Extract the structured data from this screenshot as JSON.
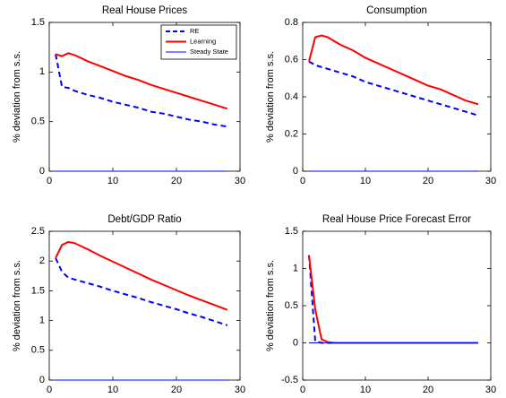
{
  "chart_data": [
    {
      "type": "line",
      "title": "Real House Prices",
      "ylabel": "% deviation from s.s.",
      "x": [
        1,
        2,
        3,
        4,
        5,
        6,
        8,
        10,
        12,
        14,
        16,
        18,
        20,
        22,
        24,
        26,
        28
      ],
      "xlim": [
        0,
        30
      ],
      "xticks": [
        0,
        10,
        20,
        30
      ],
      "ylim": [
        0,
        1.5
      ],
      "yticks": [
        0,
        0.5,
        1,
        1.5
      ],
      "legend": "upper right",
      "series": [
        {
          "name": "RE",
          "color": "#0000ff",
          "style": "dashed",
          "linewidth": 2,
          "values": [
            1.18,
            0.85,
            0.84,
            0.81,
            0.79,
            0.77,
            0.74,
            0.7,
            0.67,
            0.64,
            0.6,
            0.58,
            0.55,
            0.52,
            0.5,
            0.47,
            0.45
          ]
        },
        {
          "name": "Learning",
          "color": "#ff0000",
          "style": "solid",
          "linewidth": 2,
          "values": [
            1.18,
            1.16,
            1.19,
            1.17,
            1.14,
            1.11,
            1.06,
            1.01,
            0.96,
            0.92,
            0.87,
            0.83,
            0.79,
            0.75,
            0.71,
            0.67,
            0.63
          ]
        },
        {
          "name": "Steady State",
          "color": "#0000ff",
          "style": "solid",
          "linewidth": 1,
          "values": [
            0,
            0,
            0,
            0,
            0,
            0,
            0,
            0,
            0,
            0,
            0,
            0,
            0,
            0,
            0,
            0,
            0
          ]
        }
      ]
    },
    {
      "type": "line",
      "title": "Consumption",
      "ylabel": "% deviation from s.s.",
      "x": [
        1,
        2,
        3,
        4,
        5,
        6,
        8,
        10,
        12,
        14,
        16,
        18,
        20,
        22,
        24,
        26,
        28
      ],
      "xlim": [
        0,
        30
      ],
      "xticks": [
        0,
        10,
        20,
        30
      ],
      "ylim": [
        0,
        0.8
      ],
      "yticks": [
        0,
        0.2,
        0.4,
        0.6,
        0.8
      ],
      "series": [
        {
          "color": "#0000ff",
          "style": "dashed",
          "linewidth": 2,
          "values": [
            0.59,
            0.57,
            0.56,
            0.55,
            0.54,
            0.53,
            0.51,
            0.48,
            0.46,
            0.44,
            0.42,
            0.4,
            0.38,
            0.36,
            0.34,
            0.32,
            0.3
          ]
        },
        {
          "color": "#ff0000",
          "style": "solid",
          "linewidth": 2,
          "values": [
            0.59,
            0.72,
            0.73,
            0.72,
            0.7,
            0.68,
            0.65,
            0.61,
            0.58,
            0.55,
            0.52,
            0.49,
            0.46,
            0.44,
            0.41,
            0.38,
            0.36
          ]
        },
        {
          "color": "#0000ff",
          "style": "solid",
          "linewidth": 1,
          "values": [
            0,
            0,
            0,
            0,
            0,
            0,
            0,
            0,
            0,
            0,
            0,
            0,
            0,
            0,
            0,
            0,
            0
          ]
        }
      ]
    },
    {
      "type": "line",
      "title": "Debt/GDP Ratio",
      "ylabel": "% deviation from s.s.",
      "x": [
        1,
        2,
        3,
        4,
        5,
        6,
        8,
        10,
        12,
        14,
        16,
        18,
        20,
        22,
        24,
        26,
        28
      ],
      "xlim": [
        0,
        30
      ],
      "xticks": [
        0,
        10,
        20,
        30
      ],
      "ylim": [
        0,
        2.5
      ],
      "yticks": [
        0,
        0.5,
        1,
        1.5,
        2,
        2.5
      ],
      "series": [
        {
          "color": "#0000ff",
          "style": "dashed",
          "linewidth": 2,
          "values": [
            2.05,
            1.82,
            1.72,
            1.69,
            1.66,
            1.63,
            1.57,
            1.5,
            1.44,
            1.38,
            1.31,
            1.25,
            1.19,
            1.12,
            1.06,
            0.99,
            0.92
          ]
        },
        {
          "color": "#ff0000",
          "style": "solid",
          "linewidth": 2,
          "values": [
            2.05,
            2.27,
            2.32,
            2.3,
            2.25,
            2.2,
            2.09,
            1.99,
            1.89,
            1.79,
            1.69,
            1.6,
            1.51,
            1.42,
            1.34,
            1.26,
            1.18
          ]
        },
        {
          "color": "#0000ff",
          "style": "solid",
          "linewidth": 1,
          "values": [
            0,
            0,
            0,
            0,
            0,
            0,
            0,
            0,
            0,
            0,
            0,
            0,
            0,
            0,
            0,
            0,
            0
          ]
        }
      ]
    },
    {
      "type": "line",
      "title": "Real House Price Forecast Error",
      "ylabel": "% deviation from s.s.",
      "x": [
        1,
        2,
        3,
        4,
        5,
        6,
        8,
        10,
        12,
        14,
        16,
        18,
        20,
        22,
        24,
        26,
        28
      ],
      "xlim": [
        0,
        30
      ],
      "xticks": [
        0,
        10,
        20,
        30
      ],
      "ylim": [
        -0.5,
        1.5
      ],
      "yticks": [
        -0.5,
        0,
        0.5,
        1,
        1.5
      ],
      "series": [
        {
          "color": "#0000ff",
          "style": "dashed",
          "linewidth": 2,
          "values": [
            1.18,
            0.02,
            0,
            0,
            0,
            0,
            0,
            0,
            0,
            0,
            0,
            0,
            0,
            0,
            0,
            0,
            0
          ]
        },
        {
          "color": "#ff0000",
          "style": "solid",
          "linewidth": 2,
          "values": [
            1.18,
            0.45,
            0.05,
            0.01,
            0,
            0,
            0,
            0,
            0,
            0,
            0,
            0,
            0,
            0,
            0,
            0,
            0
          ]
        },
        {
          "color": "#0000ff",
          "style": "solid",
          "linewidth": 1,
          "values": [
            0,
            0,
            0,
            0,
            0,
            0,
            0,
            0,
            0,
            0,
            0,
            0,
            0,
            0,
            0,
            0,
            0
          ]
        }
      ]
    }
  ]
}
